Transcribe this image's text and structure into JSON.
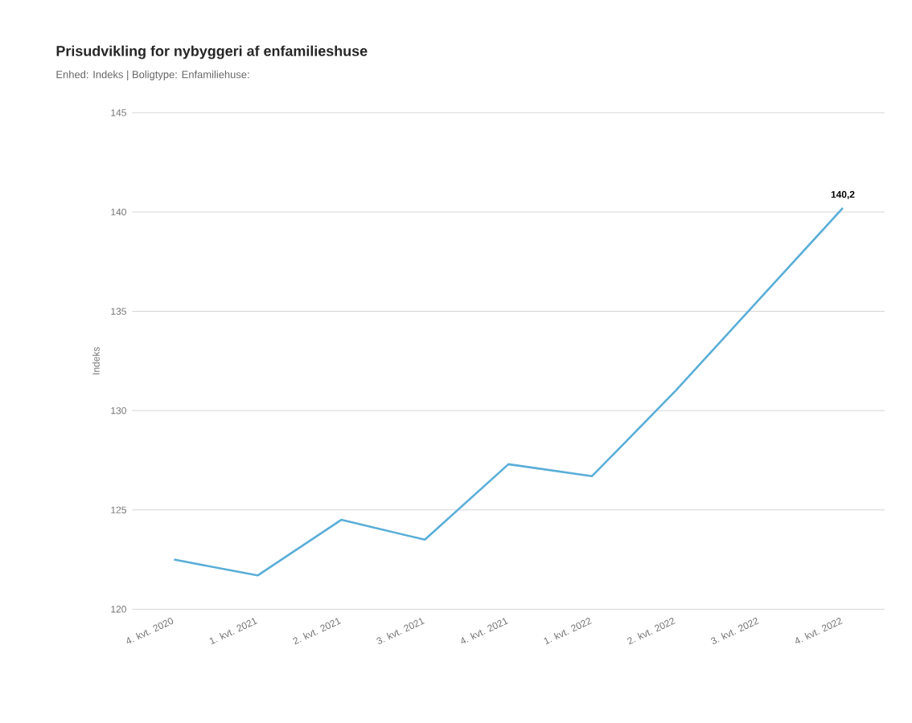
{
  "chart_data": {
    "type": "line",
    "title": "Prisudvikling for nybyggeri af enfamilieshuse",
    "subtitle": "Enhed: Indeks | Boligtype: Enfamiliehuse:",
    "ylabel": "Indeks",
    "categories": [
      "4. kvt. 2020",
      "1. kvt. 2021",
      "2. kvt. 2021",
      "3. kvt. 2021",
      "4. kvt. 2021",
      "1. kvt. 2022",
      "2. kvt. 2022",
      "3. kvt. 2022",
      "4. kvt. 2022"
    ],
    "series": [
      {
        "color": "#5aaed8",
        "values": [
          122.5,
          121.7,
          124.5,
          123.5,
          127.3,
          126.7,
          131.0,
          135.6,
          140.2
        ],
        "value_labels": [
          null,
          null,
          null,
          null,
          null,
          null,
          null,
          null,
          "140,2"
        ]
      }
    ],
    "ylim": [
      120,
      145
    ],
    "yticks": [
      120,
      125,
      130,
      135,
      140,
      145
    ],
    "grid": "y",
    "marker": "none",
    "line_style": "solid"
  }
}
